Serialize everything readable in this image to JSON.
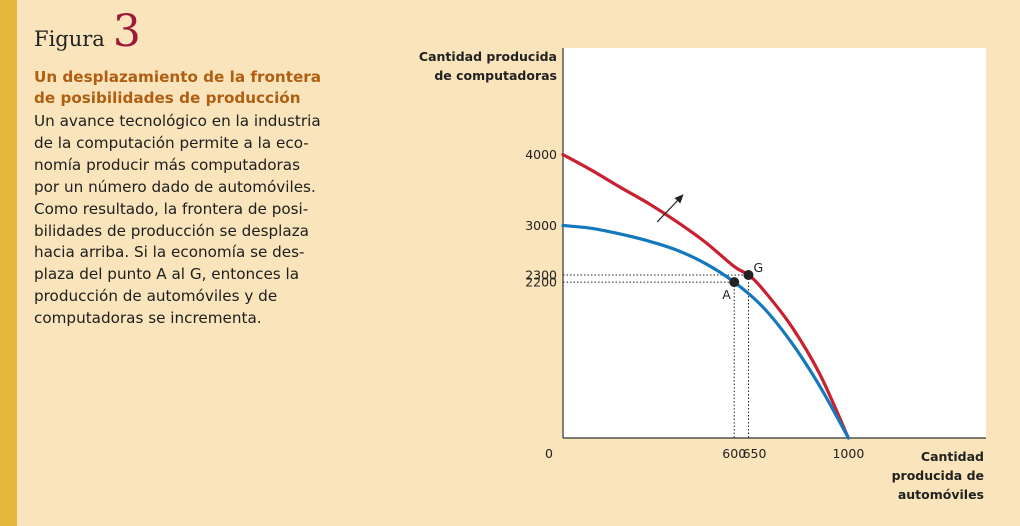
{
  "figure": {
    "label": "Figura",
    "number": "3"
  },
  "caption": {
    "title_lines": [
      "Un desplazamiento de la frontera",
      "de posibilidades de producción"
    ],
    "body_lines": [
      "Un avance tecnológico en la industria",
      "de la computación permite a la eco-",
      "nomía producir más computadoras",
      "por un número dado de automóviles.",
      "Como resultado, la frontera de posi-",
      "bilidades de producción se desplaza",
      "hacia arriba. Si la economía se des-",
      "plaza del punto A al G, entonces la",
      "producción de automóviles y de",
      "computadoras se incrementa."
    ]
  },
  "colors": {
    "sidebar": "#e8b83d",
    "background": "#f9e4bb",
    "accent_title": "#b05f12",
    "figure_number": "#9c1a38",
    "new_frontier": "#c8202f",
    "old_frontier": "#1478be"
  },
  "chart_data": {
    "type": "line",
    "ylabel_lines": [
      "Cantidad producida",
      "de computadoras"
    ],
    "xlabel_lines": [
      "Cantidad",
      "producida de",
      "automóviles"
    ],
    "origin_label": "0",
    "xlim": [
      0,
      1000
    ],
    "ylim": [
      0,
      4000
    ],
    "x_ticks": [
      {
        "value": 600,
        "label": "600"
      },
      {
        "value": 650,
        "label": "650"
      },
      {
        "value": 1000,
        "label": "1000"
      }
    ],
    "y_ticks": [
      {
        "value": 4000,
        "label": "4000"
      },
      {
        "value": 3000,
        "label": "3000"
      },
      {
        "value": 2300,
        "label": "2300"
      },
      {
        "value": 2200,
        "label": "2200"
      }
    ],
    "series": [
      {
        "color": "#c8202f",
        "x": [
          0,
          100,
          200,
          300,
          400,
          500,
          600,
          650,
          700,
          800,
          900,
          1000
        ],
        "y": [
          4000,
          3780,
          3540,
          3310,
          3050,
          2760,
          2420,
          2300,
          2100,
          1580,
          900,
          0
        ]
      },
      {
        "color": "#1478be",
        "x": [
          0,
          100,
          200,
          300,
          400,
          500,
          600,
          700,
          800,
          900,
          1000
        ],
        "y": [
          3000,
          2960,
          2880,
          2780,
          2650,
          2460,
          2200,
          1850,
          1350,
          730,
          0
        ]
      }
    ],
    "points": [
      {
        "label": "A",
        "x": 600,
        "y": 2200
      },
      {
        "label": "G",
        "x": 650,
        "y": 2300
      }
    ],
    "annotations": [
      {
        "type": "arrow",
        "from": [
          330,
          3050
        ],
        "to": [
          420,
          3430
        ]
      }
    ],
    "grid": false
  }
}
